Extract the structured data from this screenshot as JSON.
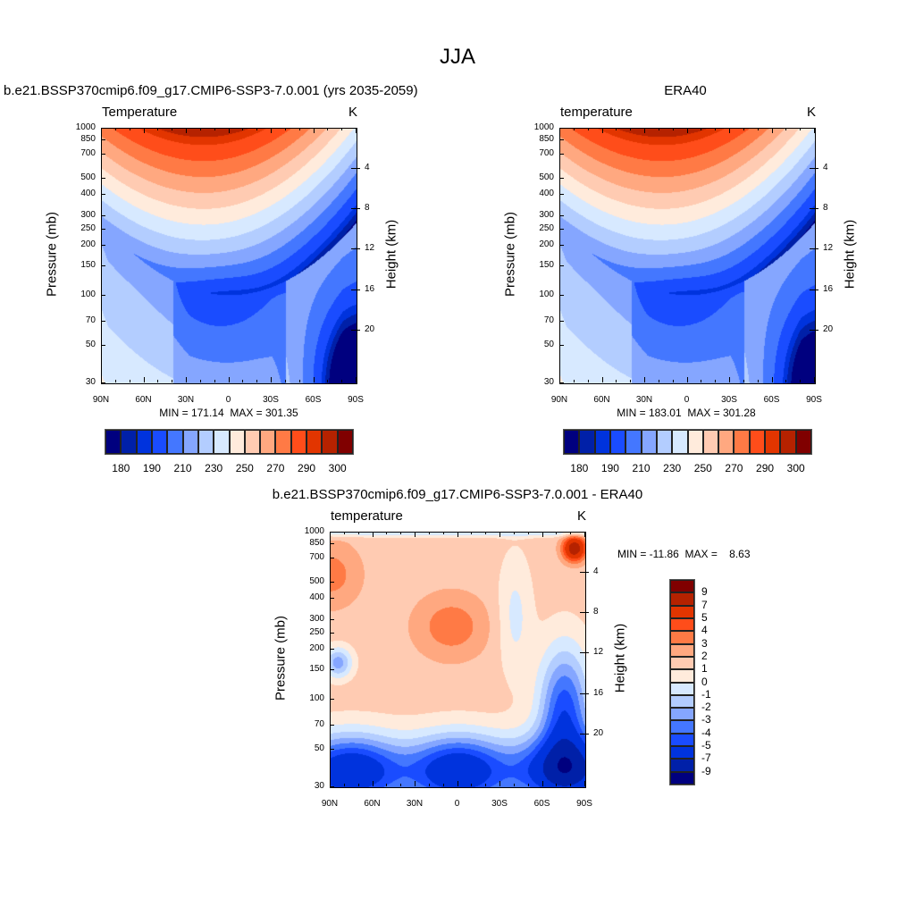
{
  "title": "JJA",
  "chart_data": [
    {
      "type": "heatmap",
      "panel": "model",
      "title": "b.e21.BSSP370cmip6.f09_g17.CMIP6-SSP3-7.0.001 (yrs 2035-2059)",
      "left_label": "Temperature",
      "units": "K",
      "ylabel": "Pressure (mb)",
      "ylabel_right": "Height (km)",
      "stats": "MIN = 171.14  MAX = 301.35"
    },
    {
      "type": "heatmap",
      "panel": "obs",
      "title": "ERA40",
      "left_label": "temperature",
      "units": "K",
      "ylabel": "Pressure (mb)",
      "ylabel_right": "Height (km)",
      "stats": "MIN = 183.01  MAX = 301.28"
    },
    {
      "type": "heatmap",
      "panel": "diff",
      "title": "b.e21.BSSP370cmip6.f09_g17.CMIP6-SSP3-7.0.001 - ERA40",
      "left_label": "temperature",
      "units": "K",
      "ylabel": "Pressure (mb)",
      "ylabel_right": "Height (km)",
      "stats": "MIN = -11.86  MAX =    8.63"
    }
  ],
  "axes": {
    "x_ticks": [
      "90N",
      "60N",
      "30N",
      "0",
      "30S",
      "60S",
      "90S"
    ],
    "pressure_ticks": [
      30,
      50,
      70,
      100,
      150,
      200,
      250,
      300,
      400,
      500,
      700,
      850,
      1000
    ],
    "height_ticks": [
      4,
      8,
      12,
      16,
      20
    ],
    "pressure_range": [
      1000,
      30
    ]
  },
  "temp_colorbar": {
    "levels": [
      180,
      185,
      190,
      200,
      210,
      220,
      230,
      240,
      250,
      260,
      270,
      280,
      290,
      295,
      300
    ],
    "labels": [
      "180",
      "190",
      "210",
      "230",
      "250",
      "270",
      "290",
      "300"
    ],
    "colors": [
      "#00007f",
      "#0020a8",
      "#0033dd",
      "#1a4cff",
      "#4477ff",
      "#85a6ff",
      "#b3cdff",
      "#d7e9ff",
      "#ffebdc",
      "#ffcbb2",
      "#ffa880",
      "#ff7a45",
      "#ff4d1a",
      "#e23500",
      "#b52200",
      "#800000"
    ]
  },
  "diff_colorbar": {
    "levels": [
      -9,
      -7,
      -5,
      -4,
      -3,
      -2,
      -1,
      0,
      1,
      2,
      3,
      4,
      5,
      7,
      9
    ],
    "labels": [
      "-9",
      "-7",
      "-5",
      "-4",
      "-3",
      "-2",
      "-1",
      "0",
      "1",
      "2",
      "3",
      "4",
      "5",
      "7",
      "9"
    ],
    "colors": [
      "#00007f",
      "#0020a8",
      "#0033dd",
      "#1a4cff",
      "#4477ff",
      "#85a6ff",
      "#b3cdff",
      "#d7e9ff",
      "#ffebdc",
      "#ffcbb2",
      "#ffa880",
      "#ff7a45",
      "#ff4d1a",
      "#e23500",
      "#b52200",
      "#800000"
    ]
  }
}
